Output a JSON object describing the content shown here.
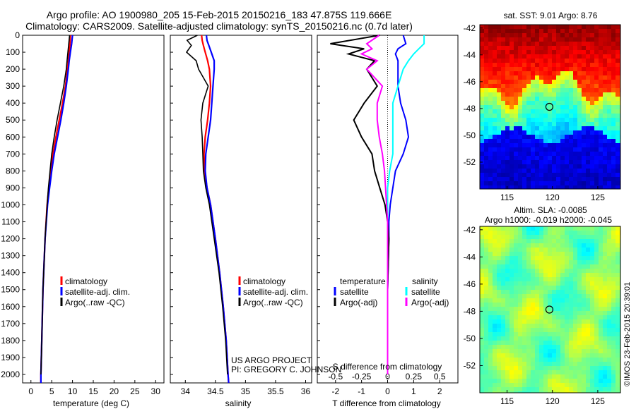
{
  "header": {
    "title_line1": "Argo profile: AO 1900980_205 15-Feb-2015 20150216_183 47.875S 119.666E",
    "title_line2": "Climatology: CARS2009. Satellite-adjusted climatology: synTS_20150216.nc (0.7d later)"
  },
  "colors": {
    "climatology": "#ff0000",
    "satellite": "#0000ff",
    "argo": "#000000",
    "salinity_satellite": "#00ffff",
    "salinity_argo": "#ff00ff"
  },
  "depth_axis": {
    "ticks": [
      "0",
      "100",
      "200",
      "300",
      "400",
      "500",
      "600",
      "700",
      "800",
      "900",
      "1000",
      "1100",
      "1200",
      "1300",
      "1400",
      "1500",
      "1600",
      "1700",
      "1800",
      "1900",
      "2000"
    ]
  },
  "chart_data": [
    {
      "type": "line",
      "name": "temperature-profile",
      "xlabel": "temperature (deg C)",
      "xlim": [
        -2,
        32
      ],
      "ylim": [
        2050,
        0
      ],
      "xticks": [
        "0",
        "5",
        "10",
        "15",
        "20",
        "25",
        "30"
      ],
      "legend": [
        "climatology",
        "satellite-adj. clim.",
        "Argo(..raw -QC)"
      ],
      "depth": [
        0,
        50,
        100,
        150,
        200,
        300,
        400,
        500,
        600,
        700,
        800,
        900,
        1000,
        1200,
        1500,
        1800,
        2000,
        2050
      ],
      "series": [
        {
          "name": "climatology",
          "values": [
            9.5,
            9.4,
            9.2,
            9.0,
            8.8,
            8.3,
            7.6,
            6.8,
            6.0,
            5.3,
            4.8,
            4.3,
            3.9,
            3.4,
            2.9,
            2.6,
            2.4,
            2.4
          ]
        },
        {
          "name": "satellite-adj. clim.",
          "values": [
            10.0,
            9.8,
            9.5,
            9.2,
            9.0,
            8.5,
            7.9,
            7.2,
            6.4,
            5.6,
            5.0,
            4.5,
            4.0,
            3.4,
            2.9,
            2.6,
            2.4,
            2.4
          ]
        },
        {
          "name": "Argo(..raw -QC)",
          "values": [
            9.3,
            9.1,
            8.9,
            8.7,
            8.5,
            7.9,
            7.1,
            6.3,
            5.6,
            5.0,
            4.6,
            4.2,
            3.9,
            3.4,
            2.9,
            2.6,
            2.4,
            null
          ]
        }
      ]
    },
    {
      "type": "line",
      "name": "salinity-profile",
      "xlabel": "salinity",
      "xlim": [
        33.75,
        36.1
      ],
      "ylim": [
        2050,
        0
      ],
      "xticks": [
        "34",
        "34.5",
        "35",
        "35.5",
        "36"
      ],
      "legend": [
        "climatology",
        "satellite-adj. clim.",
        "Argo(..raw -QC)"
      ],
      "depth": [
        0,
        30,
        60,
        100,
        150,
        200,
        300,
        400,
        500,
        600,
        700,
        800,
        900,
        1000,
        1200,
        1400,
        1600,
        1800,
        2000,
        2050
      ],
      "series": [
        {
          "name": "climatology",
          "values": [
            34.27,
            34.28,
            34.3,
            34.33,
            34.37,
            34.4,
            34.42,
            34.4,
            34.37,
            34.33,
            34.31,
            34.32,
            34.36,
            34.42,
            34.5,
            34.57,
            34.63,
            34.68,
            34.71,
            34.72
          ]
        },
        {
          "name": "satellite-adj. clim.",
          "values": [
            34.35,
            34.36,
            34.39,
            34.43,
            34.48,
            34.48,
            34.46,
            34.44,
            34.42,
            34.38,
            34.34,
            34.33,
            34.36,
            34.42,
            34.5,
            34.57,
            34.63,
            34.68,
            34.71,
            34.72
          ]
        },
        {
          "name": "Argo(..raw -QC)",
          "values": [
            34.2,
            34.03,
            34.1,
            34.02,
            34.18,
            34.22,
            34.38,
            34.29,
            34.26,
            34.28,
            34.29,
            34.3,
            34.34,
            34.4,
            34.48,
            34.56,
            34.62,
            34.67,
            34.7,
            null
          ]
        }
      ]
    },
    {
      "type": "line",
      "name": "difference-profile",
      "xlabel": "T difference from climatology",
      "xlabel_top": "S difference from climatology",
      "xlim": [
        -2.7,
        2.7
      ],
      "ylim": [
        2050,
        0
      ],
      "xticks": [
        "-2",
        "-1",
        "0",
        "1",
        "2"
      ],
      "s_ticks": [
        "-0.5",
        "-0.25",
        "0",
        "0.25",
        "0.5"
      ],
      "legend_temperature": {
        "title": "temperature",
        "items": [
          "satellite",
          "Argo(-adj)"
        ]
      },
      "legend_salinity": {
        "title": "salinity",
        "items": [
          "satellite",
          "Argo(-adj)"
        ]
      },
      "depth": [
        0,
        50,
        80,
        110,
        150,
        200,
        300,
        400,
        500,
        600,
        700,
        800,
        900,
        1000,
        1100,
        1200,
        1500,
        1800,
        2000
      ],
      "series": [
        {
          "name": "temperature satellite",
          "values": [
            0.6,
            0.7,
            0.4,
            0.3,
            0.4,
            0.4,
            0.4,
            0.5,
            0.7,
            0.8,
            0.6,
            0.3,
            0.2,
            0.1,
            0.05,
            0.05,
            0.0,
            0.0,
            0.0
          ]
        },
        {
          "name": "temperature Argo(-adj)",
          "values": [
            -0.3,
            -2.2,
            -0.9,
            -1.5,
            -0.5,
            -0.8,
            -0.4,
            -0.9,
            -1.3,
            -1.0,
            -0.6,
            -0.5,
            -0.3,
            -0.1,
            0.0,
            0.05,
            0.0,
            0.0,
            0.0
          ]
        },
        {
          "name": "salinity satellite",
          "values": [
            0.35,
            0.35,
            0.3,
            0.25,
            0.2,
            0.15,
            0.1,
            0.05,
            0.05,
            0.05,
            0.05,
            0.02,
            0.0,
            0.0,
            0.0,
            0.0,
            0.0,
            0.0,
            0.0
          ]
        },
        {
          "name": "salinity Argo(-adj)",
          "values": [
            -0.08,
            -0.2,
            -0.15,
            -0.25,
            -0.1,
            -0.2,
            -0.05,
            -0.1,
            -0.1,
            -0.08,
            -0.05,
            -0.03,
            -0.02,
            -0.01,
            0.0,
            0.0,
            0.0,
            0.0,
            0.0
          ]
        }
      ]
    },
    {
      "type": "heatmap",
      "name": "sst-map",
      "title": "sat. SST: 9.01  Argo: 8.76",
      "xticks": [
        "115",
        "120",
        "125"
      ],
      "yticks": [
        "-42",
        "-44",
        "-46",
        "-48",
        "-50",
        "-52"
      ],
      "xlim": [
        112,
        127.5
      ],
      "ylim": [
        -54,
        -41.75
      ],
      "marker": {
        "lon": 119.666,
        "lat": -47.875
      }
    },
    {
      "type": "heatmap",
      "name": "sla-map",
      "title": "Altim. SLA: -0.0085",
      "subtitle": "Argo h1000: -0.019 h2000: -0.045",
      "xticks": [
        "115",
        "120",
        "125"
      ],
      "yticks": [
        "-42",
        "-44",
        "-46",
        "-48",
        "-50",
        "-52"
      ],
      "xlim": [
        112,
        127.5
      ],
      "ylim": [
        -54,
        -41.75
      ],
      "marker": {
        "lon": 119.666,
        "lat": -47.875
      }
    }
  ],
  "annotations": {
    "project": "US ARGO PROJECT",
    "pi": "PI: GREGORY C. JOHNSON",
    "credit": "©IMOS 23-Feb-2015 20:39:01"
  }
}
